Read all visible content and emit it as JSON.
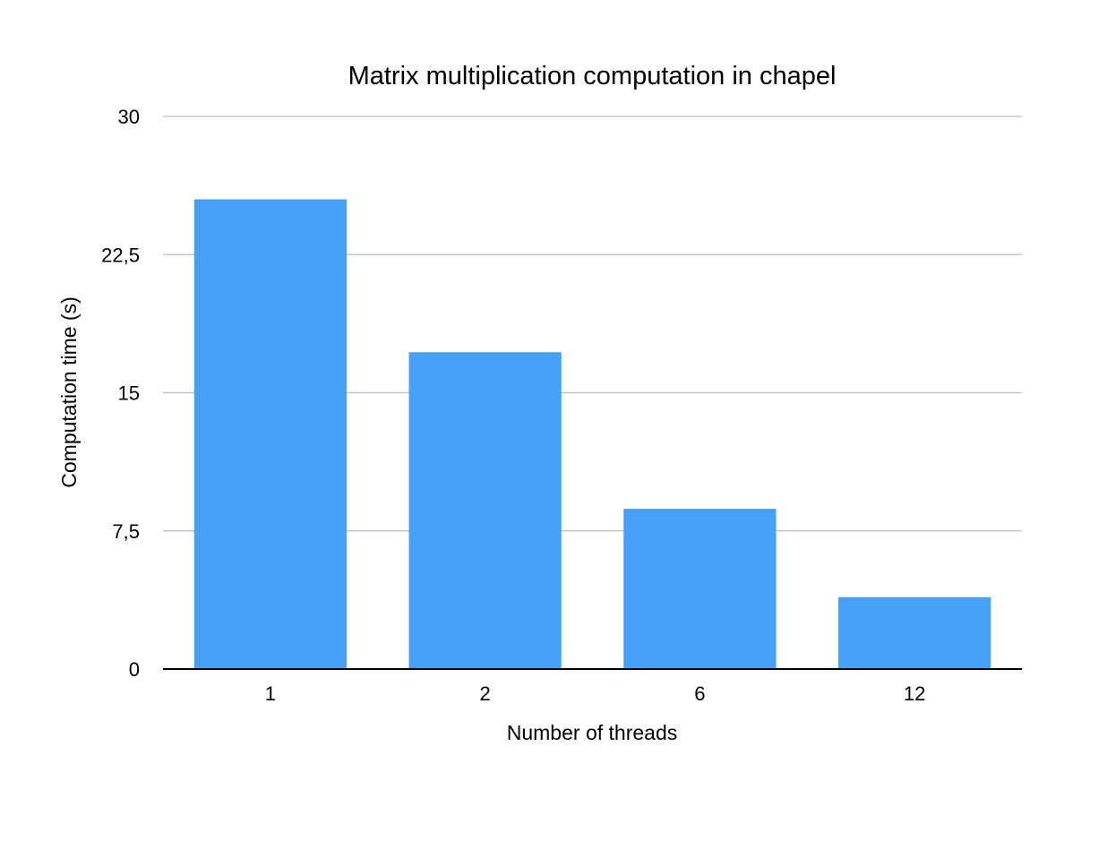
{
  "chart_data": {
    "type": "bar",
    "title": "Matrix multiplication computation in chapel",
    "xlabel": "Number of threads",
    "ylabel": "Computation time (s)",
    "categories": [
      "1",
      "2",
      "6",
      "12"
    ],
    "values": [
      25.5,
      17.2,
      8.7,
      3.9
    ],
    "ylim": [
      0,
      30
    ],
    "yticks": [
      0,
      7.5,
      15,
      22.5,
      30
    ],
    "ytick_labels": [
      "0",
      "7,5",
      "15",
      "22,5",
      "30"
    ],
    "grid": true,
    "legend": "none",
    "bar_color": "#46a0f7"
  }
}
